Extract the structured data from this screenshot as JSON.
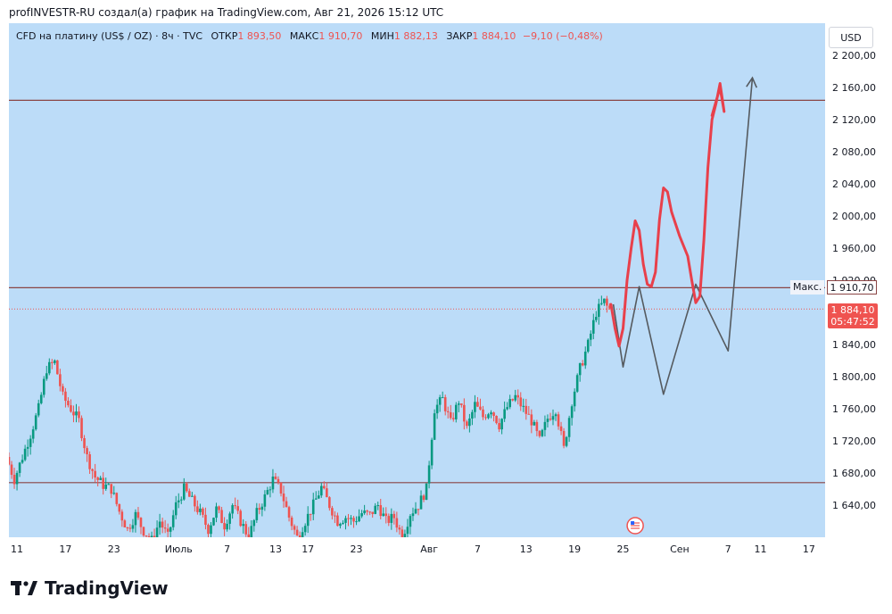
{
  "header": {
    "caption": "profINVESTR-RU создал(а) график на TradingView.com, Авг 21, 2026 15:12 UTC"
  },
  "legend": {
    "symbol": "CFD на платину (US$ / OZ) · 8ч · TVC",
    "open_label": "ОТКР",
    "open": "1 893,50",
    "high_label": "МАКС",
    "high": "1 910,70",
    "low_label": "МИН",
    "low": "1 882,13",
    "close_label": "ЗАКР",
    "close": "1 884,10",
    "change": "−9,10 (−0,48%)"
  },
  "currency_button": "USD",
  "brand": "TradingView",
  "price_tag": {
    "price": "1 884,10",
    "countdown": "05:47:52"
  },
  "max_tag": {
    "label": "Макс.",
    "value": "1 910,70"
  },
  "colors": {
    "up": "#089981",
    "down": "#ef5350",
    "plot_bg": "#bcdcf8",
    "level_line": "#8a4545",
    "red_path": "#e8404b",
    "grey_path": "#555a5f"
  },
  "icons": {
    "event": "flag-icon"
  },
  "chart_data": {
    "type": "candlestick",
    "ylim": [
      1600,
      2240
    ],
    "y_ticks": [
      {
        "v": 1640,
        "label": "1 640,00"
      },
      {
        "v": 1680,
        "label": "1 680,00"
      },
      {
        "v": 1720,
        "label": "1 720,00"
      },
      {
        "v": 1760,
        "label": "1 760,00"
      },
      {
        "v": 1800,
        "label": "1 800,00"
      },
      {
        "v": 1840,
        "label": "1 840,00"
      },
      {
        "v": 1920,
        "label": "1 920,00"
      },
      {
        "v": 1960,
        "label": "1 960,00"
      },
      {
        "v": 2000,
        "label": "2 000,00"
      },
      {
        "v": 2040,
        "label": "2 040,00"
      },
      {
        "v": 2080,
        "label": "2 080,00"
      },
      {
        "v": 2120,
        "label": "2 120,00"
      },
      {
        "v": 2160,
        "label": "2 160,00"
      },
      {
        "v": 2200,
        "label": "2 200,00"
      }
    ],
    "x_ticks": [
      {
        "label": "11",
        "day": 11
      },
      {
        "label": "17",
        "day": 17
      },
      {
        "label": "23",
        "day": 23
      },
      {
        "label": "Июль",
        "day": 31
      },
      {
        "label": "7",
        "day": 37
      },
      {
        "label": "13",
        "day": 43
      },
      {
        "label": "17",
        "day": 47
      },
      {
        "label": "23",
        "day": 53
      },
      {
        "label": "Авг",
        "day": 62
      },
      {
        "label": "7",
        "day": 68
      },
      {
        "label": "13",
        "day": 74
      },
      {
        "label": "19",
        "day": 80
      },
      {
        "label": "25",
        "day": 86
      },
      {
        "label": "Сен",
        "day": 93
      },
      {
        "label": "7",
        "day": 99
      },
      {
        "label": "11",
        "day": 103
      },
      {
        "label": "17",
        "day": 109
      }
    ],
    "x_range": [
      10,
      111
    ],
    "levels": [
      2144,
      1910.7,
      1668
    ],
    "current_price": 1884.1,
    "candles_path": [
      [
        10,
        1700
      ],
      [
        11,
        1672
      ],
      [
        12,
        1700
      ],
      [
        13,
        1728
      ],
      [
        14,
        1760
      ],
      [
        15,
        1810
      ],
      [
        16,
        1818
      ],
      [
        17,
        1775
      ],
      [
        18,
        1760
      ],
      [
        19,
        1745
      ],
      [
        20,
        1700
      ],
      [
        21,
        1675
      ],
      [
        22,
        1665
      ],
      [
        23,
        1660
      ],
      [
        24,
        1632
      ],
      [
        25,
        1610
      ],
      [
        26,
        1628
      ],
      [
        27,
        1608
      ],
      [
        28,
        1596
      ],
      [
        29,
        1620
      ],
      [
        30,
        1600
      ],
      [
        31,
        1640
      ],
      [
        32,
        1660
      ],
      [
        33,
        1645
      ],
      [
        34,
        1630
      ],
      [
        35,
        1610
      ],
      [
        36,
        1635
      ],
      [
        37,
        1615
      ],
      [
        38,
        1640
      ],
      [
        39,
        1620
      ],
      [
        40,
        1600
      ],
      [
        41,
        1630
      ],
      [
        42,
        1650
      ],
      [
        43,
        1672
      ],
      [
        44,
        1658
      ],
      [
        45,
        1625
      ],
      [
        46,
        1600
      ],
      [
        47,
        1620
      ],
      [
        48,
        1640
      ],
      [
        49,
        1662
      ],
      [
        50,
        1640
      ],
      [
        51,
        1620
      ],
      [
        52,
        1625
      ],
      [
        53,
        1620
      ],
      [
        54,
        1630
      ],
      [
        55,
        1628
      ],
      [
        56,
        1640
      ],
      [
        57,
        1620
      ],
      [
        58,
        1625
      ],
      [
        59,
        1600
      ],
      [
        60,
        1630
      ],
      [
        61,
        1640
      ],
      [
        62,
        1660
      ],
      [
        63,
        1760
      ],
      [
        64,
        1772
      ],
      [
        65,
        1742
      ],
      [
        66,
        1770
      ],
      [
        67,
        1735
      ],
      [
        68,
        1765
      ],
      [
        69,
        1750
      ],
      [
        70,
        1760
      ],
      [
        71,
        1740
      ],
      [
        72,
        1762
      ],
      [
        73,
        1775
      ],
      [
        74,
        1760
      ],
      [
        75,
        1745
      ],
      [
        76,
        1720
      ],
      [
        77,
        1748
      ],
      [
        78,
        1760
      ],
      [
        79,
        1710
      ],
      [
        80,
        1770
      ],
      [
        81,
        1810
      ],
      [
        82,
        1840
      ],
      [
        83,
        1880
      ],
      [
        84,
        1893.5
      ],
      [
        84.5,
        1884.1
      ]
    ],
    "projection_red": [
      [
        84.5,
        1890
      ],
      [
        85,
        1860
      ],
      [
        85.5,
        1838
      ],
      [
        86,
        1860
      ],
      [
        86.5,
        1920
      ],
      [
        87,
        1960
      ],
      [
        87.5,
        1994
      ],
      [
        88,
        1982
      ],
      [
        88.5,
        1940
      ],
      [
        89,
        1915
      ],
      [
        89.5,
        1912
      ],
      [
        90,
        1930
      ],
      [
        90.5,
        1995
      ],
      [
        91,
        2035
      ],
      [
        91.5,
        2030
      ],
      [
        92,
        2005
      ],
      [
        93,
        1975
      ],
      [
        94,
        1950
      ],
      [
        94.5,
        1920
      ],
      [
        95,
        1892
      ],
      [
        95.5,
        1900
      ],
      [
        96,
        1970
      ],
      [
        96.5,
        2060
      ],
      [
        97,
        2120
      ],
      [
        97.5,
        2140
      ],
      [
        98,
        2165
      ],
      [
        98.5,
        2130
      ],
      [
        98,
        2160
      ],
      [
        97,
        2125
      ]
    ],
    "projection_grey": [
      [
        84.8,
        1890
      ],
      [
        86,
        1812
      ],
      [
        88,
        1912
      ],
      [
        91,
        1778
      ],
      [
        95,
        1915
      ],
      [
        99,
        1832
      ],
      [
        102,
        2172
      ]
    ]
  }
}
